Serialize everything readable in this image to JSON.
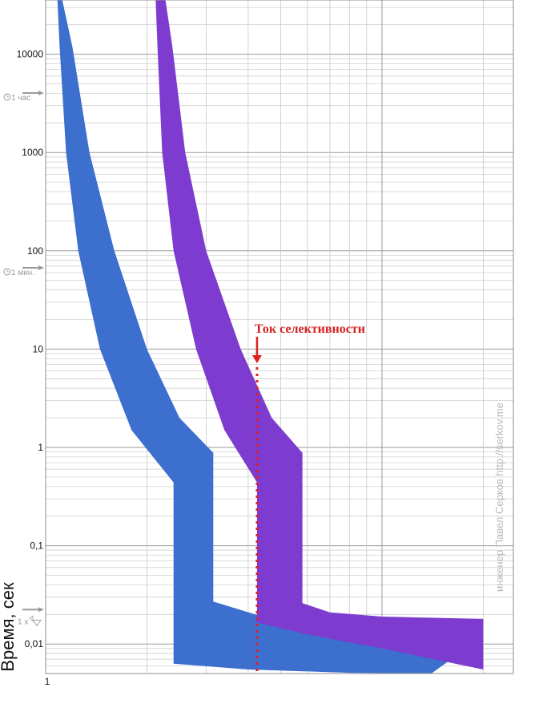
{
  "chart_data": {
    "type": "area",
    "ylabel": "Время, сек",
    "y_scale": "log",
    "x_scale": "log",
    "ylim": [
      0.005,
      40000
    ],
    "xlim": [
      1,
      20
    ],
    "grid": true,
    "y_tick_labels": [
      {
        "value": 10000,
        "label": "10000"
      },
      {
        "value": 1000,
        "label": "1000"
      },
      {
        "value": 100,
        "label": "100"
      },
      {
        "value": 10,
        "label": "10"
      },
      {
        "value": 1,
        "label": "1"
      },
      {
        "value": 0.1,
        "label": "0,1"
      },
      {
        "value": 0.01,
        "label": "0,01"
      }
    ],
    "x_tick_labels": [
      {
        "value": 1,
        "label": "1"
      }
    ],
    "markers": [
      {
        "value": 3600,
        "label": "1 час",
        "icon": "clock-icon"
      },
      {
        "value": 60,
        "label": "1 мин.",
        "icon": "clock-icon"
      },
      {
        "value": 0.02,
        "label": "1 x",
        "icon": "triangle-icon"
      }
    ],
    "series": [
      {
        "color": "#3d6fcf",
        "upper": [
          [
            1.112,
            40000
          ],
          [
            1.2,
            12000
          ],
          [
            1.35,
            1000
          ],
          [
            1.6,
            100
          ],
          [
            2.0,
            10
          ],
          [
            2.5,
            2.0
          ],
          [
            3.15,
            0.88
          ],
          [
            3.15,
            0.027
          ],
          [
            4.2,
            0.02
          ],
          [
            6,
            0.0165
          ],
          [
            10,
            0.014
          ],
          [
            20,
            0.012
          ]
        ],
        "lower": [
          [
            1.082,
            40000
          ],
          [
            1.1,
            12000
          ],
          [
            1.15,
            1000
          ],
          [
            1.25,
            100
          ],
          [
            1.45,
            10
          ],
          [
            1.8,
            1.5
          ],
          [
            2.4,
            0.44
          ],
          [
            2.4,
            0.0063
          ],
          [
            4,
            0.0055
          ],
          [
            8,
            0.0051
          ],
          [
            14,
            0.005
          ]
        ]
      },
      {
        "color": "#7d3ccf",
        "upper": [
          [
            2.26,
            40000
          ],
          [
            2.38,
            12000
          ],
          [
            2.6,
            1000
          ],
          [
            3.0,
            100
          ],
          [
            3.8,
            10
          ],
          [
            4.7,
            2.0
          ],
          [
            5.8,
            0.88
          ],
          [
            5.8,
            0.026
          ],
          [
            7,
            0.021
          ],
          [
            10,
            0.019
          ],
          [
            20,
            0.018
          ]
        ],
        "lower": [
          [
            2.12,
            40000
          ],
          [
            2.15,
            12000
          ],
          [
            2.22,
            1000
          ],
          [
            2.4,
            100
          ],
          [
            2.8,
            10
          ],
          [
            3.4,
            1.5
          ],
          [
            4.25,
            0.44
          ],
          [
            4.25,
            0.0165
          ],
          [
            6,
            0.0125
          ],
          [
            10,
            0.009
          ],
          [
            20,
            0.0055
          ]
        ]
      }
    ],
    "annotations": [
      {
        "text": "Ток селективности",
        "x": 4.25
      }
    ],
    "watermark": "инженер Павел Серков http://serkov.me"
  }
}
